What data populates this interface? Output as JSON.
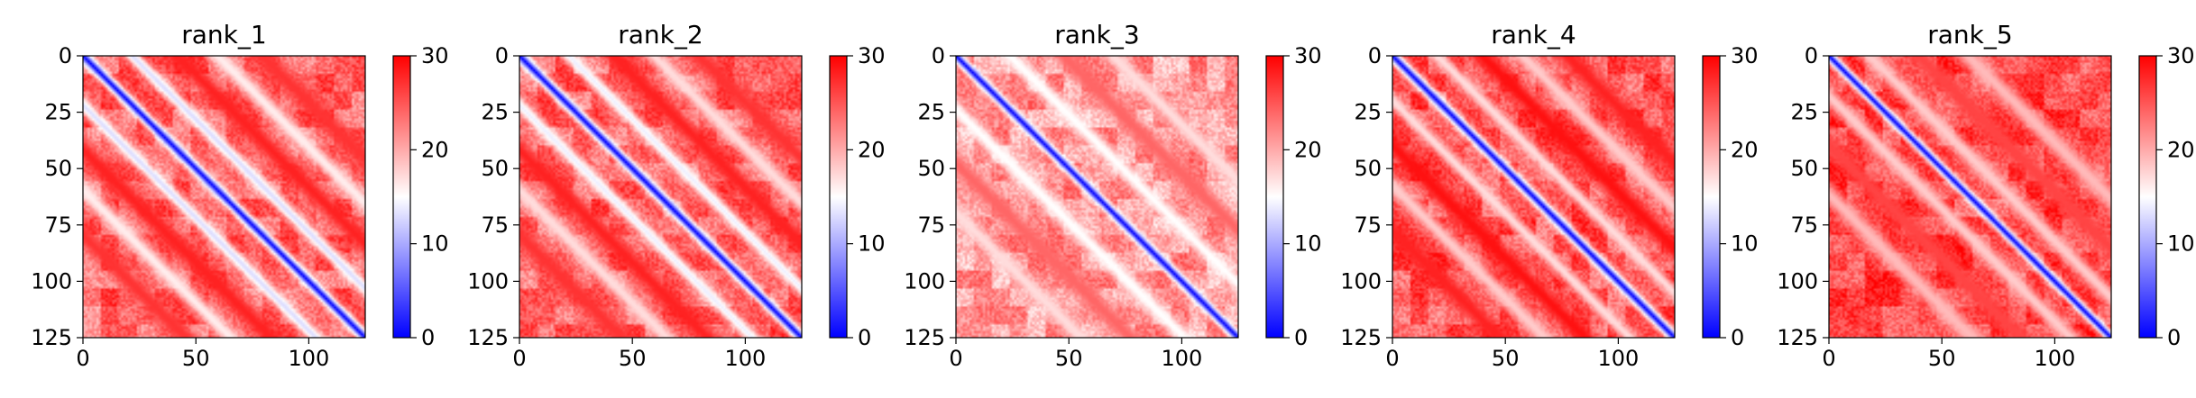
{
  "chart_data": [
    {
      "type": "heatmap",
      "title": "rank_1",
      "x_ticks": [
        "0",
        "50",
        "100"
      ],
      "y_ticks": [
        "0",
        "25",
        "50",
        "75",
        "100",
        "125"
      ],
      "colorbar_ticks": [
        "0",
        "10",
        "20",
        "30"
      ],
      "xlim": [
        0,
        125
      ],
      "ylim": [
        125,
        0
      ],
      "clim": [
        0,
        30
      ],
      "grid": false,
      "pattern": {
        "diag_width": 4,
        "bands": [
          {
            "offset": 22,
            "value": 13,
            "width": 4
          },
          {
            "offset": 42,
            "value": 28,
            "width": 6
          },
          {
            "offset": 60,
            "value": 16,
            "width": 5
          },
          {
            "offset": 80,
            "value": 27,
            "width": 6
          }
        ],
        "base": 24
      }
    },
    {
      "type": "heatmap",
      "title": "rank_2",
      "x_ticks": [
        "0",
        "50",
        "100"
      ],
      "y_ticks": [
        "0",
        "25",
        "50",
        "75",
        "100",
        "125"
      ],
      "colorbar_ticks": [
        "0",
        "10",
        "20",
        "30"
      ],
      "xlim": [
        0,
        125
      ],
      "ylim": [
        125,
        0
      ],
      "clim": [
        0,
        30
      ],
      "grid": false,
      "pattern": {
        "diag_width": 4,
        "bands": [
          {
            "offset": 22,
            "value": 14,
            "width": 4
          },
          {
            "offset": 42,
            "value": 28,
            "width": 6
          },
          {
            "offset": 60,
            "value": 17,
            "width": 5
          },
          {
            "offset": 80,
            "value": 27,
            "width": 6
          }
        ],
        "base": 24
      }
    },
    {
      "type": "heatmap",
      "title": "rank_3",
      "x_ticks": [
        "0",
        "50",
        "100"
      ],
      "y_ticks": [
        "0",
        "25",
        "50",
        "75",
        "100",
        "125"
      ],
      "colorbar_ticks": [
        "0",
        "10",
        "20",
        "30"
      ],
      "xlim": [
        0,
        125
      ],
      "ylim": [
        125,
        0
      ],
      "clim": [
        0,
        30
      ],
      "grid": false,
      "pattern": {
        "diag_width": 3.5,
        "bands": [
          {
            "offset": 24,
            "value": 15,
            "width": 5
          },
          {
            "offset": 48,
            "value": 24,
            "width": 6
          },
          {
            "offset": 70,
            "value": 17,
            "width": 5
          }
        ],
        "base": 21
      }
    },
    {
      "type": "heatmap",
      "title": "rank_4",
      "x_ticks": [
        "0",
        "50",
        "100"
      ],
      "y_ticks": [
        "0",
        "25",
        "50",
        "75",
        "100",
        "125"
      ],
      "colorbar_ticks": [
        "0",
        "10",
        "20",
        "30"
      ],
      "xlim": [
        0,
        125
      ],
      "ylim": [
        125,
        0
      ],
      "clim": [
        0,
        30
      ],
      "grid": false,
      "pattern": {
        "diag_width": 4,
        "bands": [
          {
            "offset": 20,
            "value": 17,
            "width": 4
          },
          {
            "offset": 40,
            "value": 29,
            "width": 6
          },
          {
            "offset": 58,
            "value": 18,
            "width": 5
          },
          {
            "offset": 78,
            "value": 28,
            "width": 6
          }
        ],
        "base": 25
      }
    },
    {
      "type": "heatmap",
      "title": "rank_5",
      "x_ticks": [
        "0",
        "50",
        "100"
      ],
      "y_ticks": [
        "0",
        "25",
        "50",
        "75",
        "100",
        "125"
      ],
      "colorbar_ticks": [
        "0",
        "10",
        "20",
        "30"
      ],
      "xlim": [
        0,
        125
      ],
      "ylim": [
        125,
        0
      ],
      "clim": [
        0,
        30
      ],
      "grid": false,
      "pattern": {
        "diag_width": 3.5,
        "bands": [
          {
            "offset": 18,
            "value": 18,
            "width": 5
          },
          {
            "offset": 40,
            "value": 26,
            "width": 6
          },
          {
            "offset": 62,
            "value": 19,
            "width": 6
          }
        ],
        "base": 26
      }
    }
  ],
  "colors": {
    "low": "#0000ff",
    "mid": "#ffffff",
    "high": "#ff0000"
  }
}
